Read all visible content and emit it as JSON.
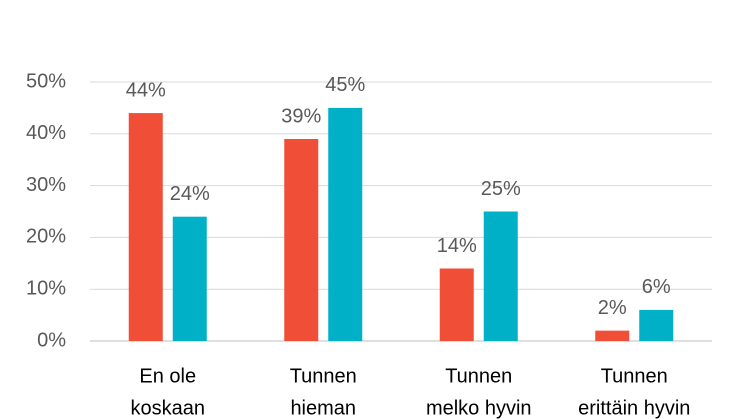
{
  "chart_data": {
    "type": "bar",
    "categories": [
      [
        "En ole",
        "koskaan"
      ],
      [
        "Tunnen",
        "hieman"
      ],
      [
        "Tunnen",
        "melko hyvin"
      ],
      [
        "Tunnen",
        "erittäin hyvin"
      ]
    ],
    "series": [
      {
        "color": "#f04e37",
        "values": [
          44,
          39,
          14,
          2
        ],
        "value_labels": [
          "44%",
          "39%",
          "14%",
          "2%"
        ]
      },
      {
        "color": "#00b0c7",
        "values": [
          24,
          45,
          25,
          6
        ],
        "value_labels": [
          "24%",
          "45%",
          "25%",
          "6%"
        ]
      }
    ],
    "ylim": [
      0,
      50
    ],
    "yticks": [
      {
        "value": 0,
        "label": "0%"
      },
      {
        "value": 10,
        "label": "10%"
      },
      {
        "value": 20,
        "label": "20%"
      },
      {
        "value": 30,
        "label": "30%"
      },
      {
        "value": 40,
        "label": "40%"
      },
      {
        "value": 50,
        "label": "50%"
      }
    ],
    "grid": true
  }
}
